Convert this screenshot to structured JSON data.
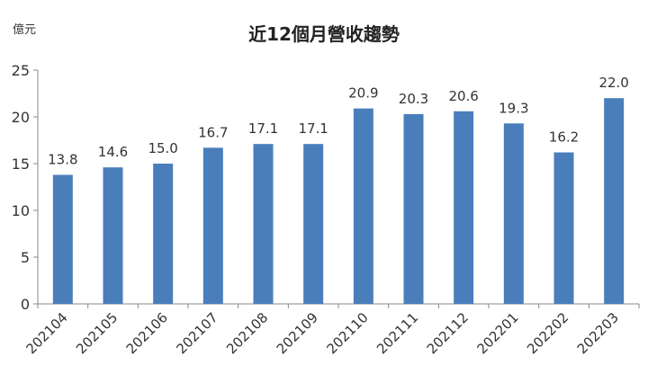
{
  "chart_data": {
    "type": "bar",
    "title": "近12個月營收趨勢",
    "unit_label": "億元",
    "categories": [
      "202104",
      "202105",
      "202106",
      "202107",
      "202108",
      "202109",
      "202110",
      "202111",
      "202112",
      "202201",
      "202202",
      "202203"
    ],
    "values": [
      13.8,
      14.6,
      15.0,
      16.7,
      17.1,
      17.1,
      20.9,
      20.3,
      20.6,
      19.3,
      16.2,
      22.0
    ],
    "value_labels": [
      "13.8",
      "14.6",
      "15.0",
      "16.7",
      "17.1",
      "17.1",
      "20.9",
      "20.3",
      "20.6",
      "19.3",
      "16.2",
      "22.0"
    ],
    "ylim": [
      0,
      25
    ],
    "yticks": [
      0,
      5,
      10,
      15,
      20,
      25
    ],
    "grid": false,
    "bar_color": "#4a7ebb"
  }
}
